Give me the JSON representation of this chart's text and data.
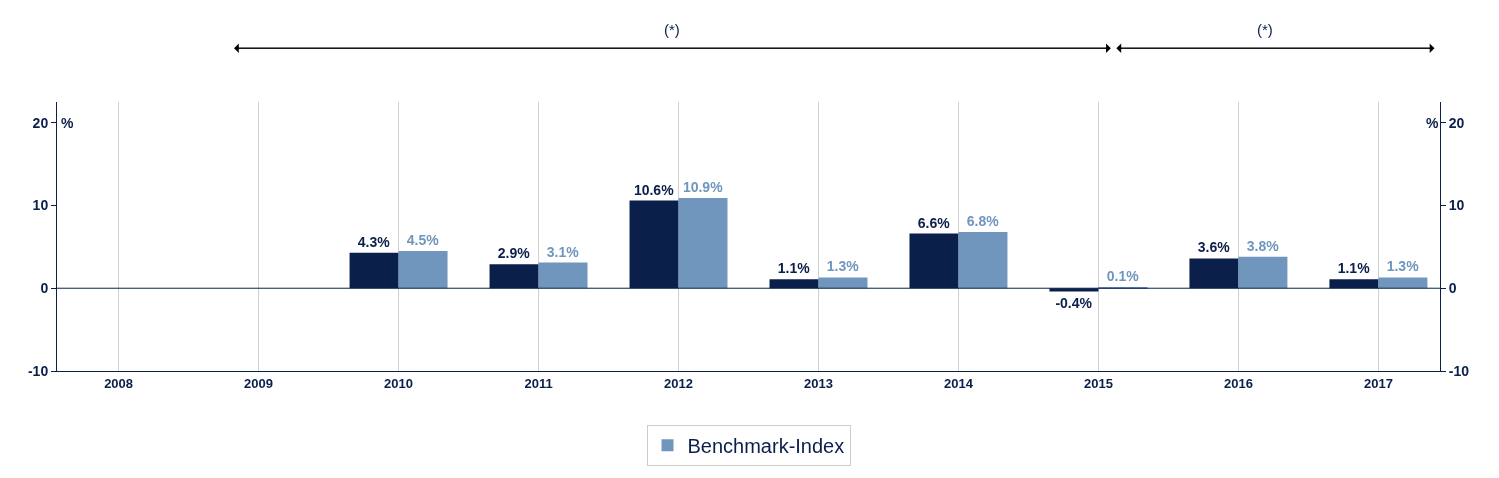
{
  "chart_data": {
    "type": "bar",
    "categories": [
      "2008",
      "2009",
      "2010",
      "2011",
      "2012",
      "2013",
      "2014",
      "2015",
      "2016",
      "2017"
    ],
    "series": [
      {
        "color": "#0b1f4b",
        "values": [
          null,
          null,
          4.3,
          2.9,
          10.6,
          1.1,
          6.6,
          -0.4,
          3.6,
          1.1
        ],
        "value_labels": [
          null,
          null,
          "4.3%",
          "2.9%",
          "10.6%",
          "1.1%",
          "6.6%",
          "-0.4%",
          "3.6%",
          "1.1%"
        ]
      },
      {
        "name": "Benchmark-Index",
        "color": "#7096bd",
        "values": [
          null,
          null,
          4.5,
          3.1,
          10.9,
          1.3,
          6.8,
          0.1,
          3.8,
          1.3
        ],
        "value_labels": [
          null,
          null,
          "4.5%",
          "3.1%",
          "10.9%",
          "1.3%",
          "6.8%",
          "0.1%",
          "3.8%",
          "1.3%"
        ]
      }
    ],
    "ylim": [
      -10,
      22.5
    ],
    "yticks": [
      -10,
      0,
      10,
      20
    ],
    "y2lim": [
      -10,
      22.5
    ],
    "y2ticks": [
      -10,
      0,
      10,
      20
    ],
    "ylabel": "%",
    "y2label": "%",
    "grid": "x",
    "legend": "bottom",
    "ref_lines": [
      {
        "axis": "y",
        "value": 0,
        "color": "#0b1f4b"
      }
    ],
    "annotations": [
      "(*)",
      "(*)"
    ]
  }
}
